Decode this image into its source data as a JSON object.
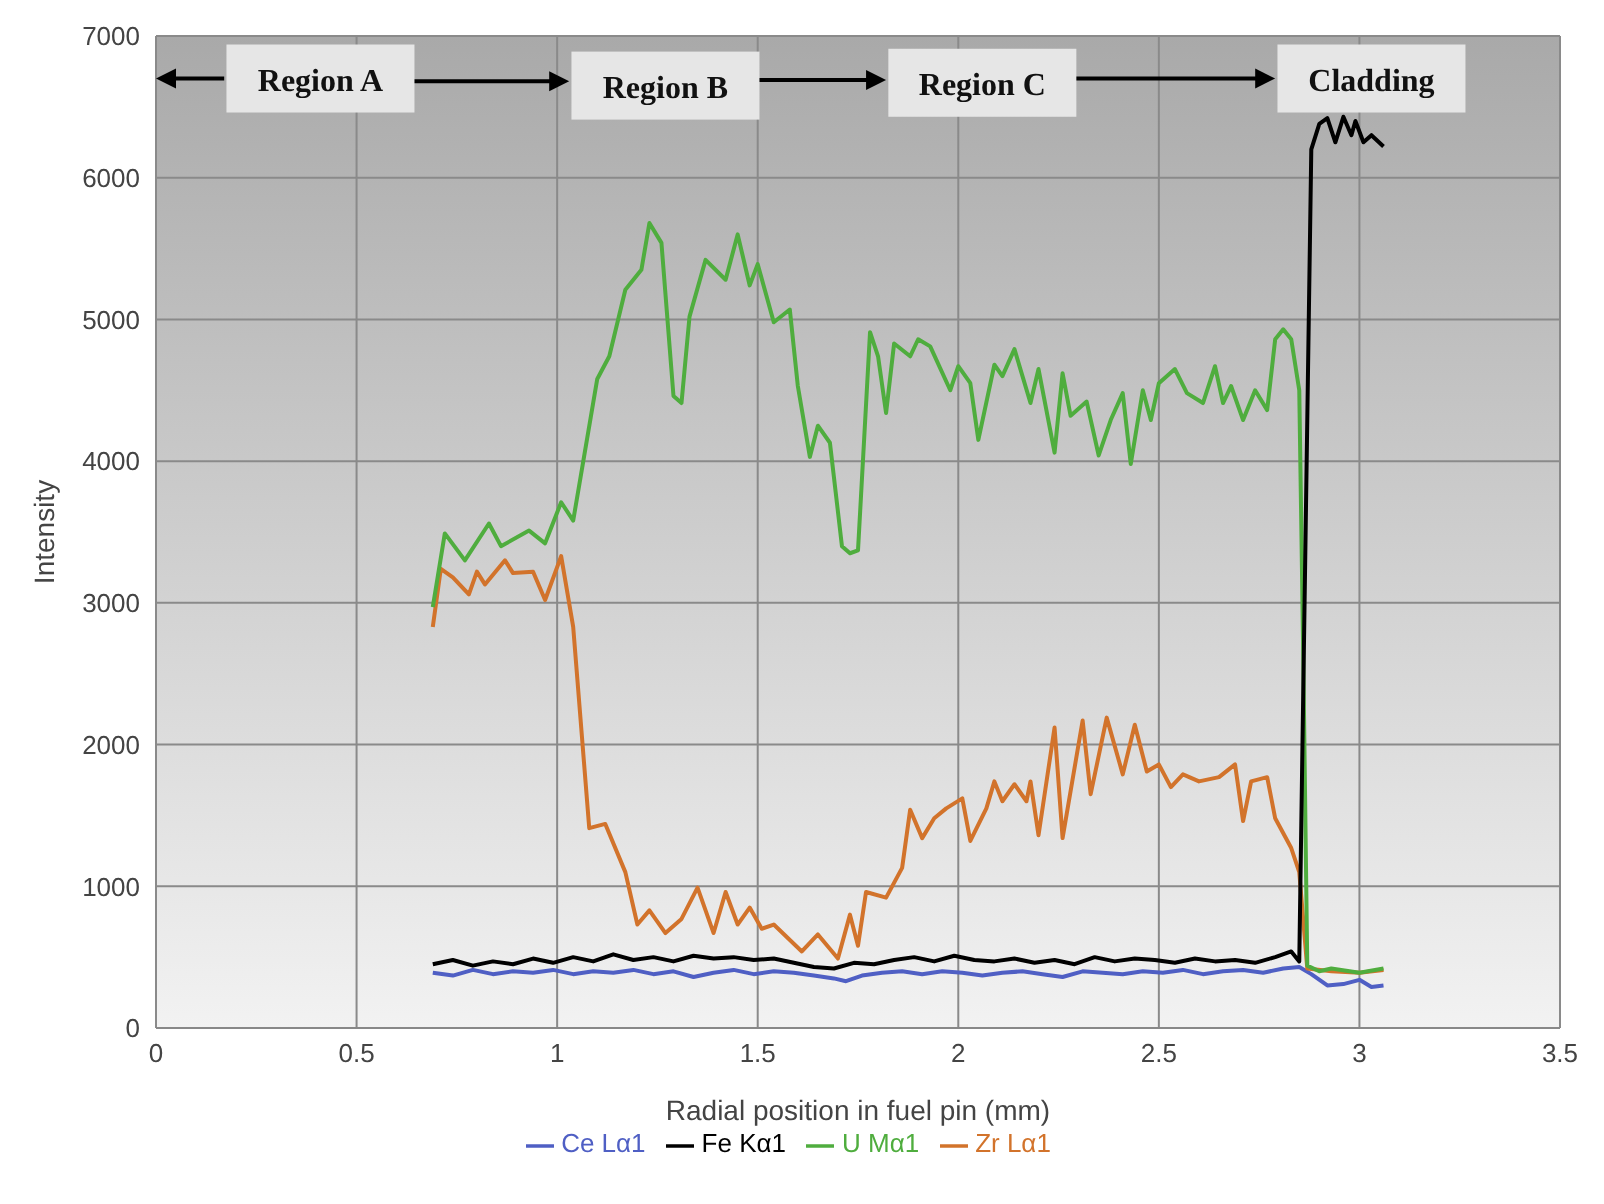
{
  "chart_data": {
    "type": "line",
    "xlabel": "Radial position in fuel pin (mm)",
    "ylabel": "Intensity",
    "xlim": [
      0,
      3.5
    ],
    "xticks": [
      0,
      0.5,
      1,
      1.5,
      2,
      2.5,
      3,
      3.5
    ],
    "ylim": [
      0,
      7000
    ],
    "yticks": [
      0,
      1000,
      2000,
      3000,
      4000,
      5000,
      6000,
      7000
    ],
    "grid": true,
    "legend": "bottom",
    "marker": "none",
    "annotations": [
      "Region A",
      "Region B",
      "Region C",
      "Cladding"
    ],
    "series": [
      {
        "name": "Ce Lα1",
        "color": "#4f5fc4",
        "x": [
          0.69,
          0.74,
          0.79,
          0.84,
          0.89,
          0.94,
          0.99,
          1.04,
          1.09,
          1.14,
          1.19,
          1.24,
          1.29,
          1.34,
          1.39,
          1.44,
          1.49,
          1.54,
          1.59,
          1.64,
          1.69,
          1.72,
          1.76,
          1.81,
          1.86,
          1.91,
          1.96,
          2.01,
          2.06,
          2.11,
          2.16,
          2.21,
          2.26,
          2.31,
          2.36,
          2.41,
          2.46,
          2.51,
          2.56,
          2.61,
          2.66,
          2.71,
          2.76,
          2.81,
          2.85,
          2.88,
          2.92,
          2.96,
          3.0,
          3.03,
          3.06
        ],
        "values": [
          390,
          370,
          410,
          380,
          400,
          390,
          410,
          380,
          400,
          390,
          410,
          380,
          400,
          360,
          390,
          410,
          380,
          400,
          390,
          370,
          350,
          330,
          370,
          390,
          400,
          380,
          400,
          390,
          370,
          390,
          400,
          380,
          360,
          400,
          390,
          380,
          400,
          390,
          410,
          380,
          400,
          410,
          390,
          420,
          430,
          380,
          300,
          310,
          340,
          290,
          300
        ]
      },
      {
        "name": "Zr Lα1",
        "color": "#d2732b",
        "x": [
          0.69,
          0.71,
          0.74,
          0.78,
          0.8,
          0.82,
          0.87,
          0.89,
          0.94,
          0.97,
          1.01,
          1.04,
          1.08,
          1.12,
          1.17,
          1.2,
          1.23,
          1.27,
          1.31,
          1.35,
          1.39,
          1.42,
          1.45,
          1.48,
          1.51,
          1.54,
          1.61,
          1.65,
          1.7,
          1.73,
          1.75,
          1.77,
          1.82,
          1.86,
          1.88,
          1.91,
          1.94,
          1.97,
          2.01,
          2.03,
          2.07,
          2.09,
          2.11,
          2.14,
          2.17,
          2.18,
          2.2,
          2.24,
          2.26,
          2.31,
          2.33,
          2.37,
          2.41,
          2.44,
          2.47,
          2.5,
          2.53,
          2.56,
          2.6,
          2.65,
          2.69,
          2.71,
          2.73,
          2.77,
          2.79,
          2.83,
          2.85,
          2.87,
          2.93,
          3.0,
          3.06
        ],
        "values": [
          2830,
          3240,
          3180,
          3060,
          3220,
          3130,
          3300,
          3210,
          3220,
          3020,
          3330,
          2830,
          1410,
          1440,
          1100,
          730,
          830,
          670,
          770,
          990,
          670,
          960,
          730,
          850,
          700,
          730,
          540,
          660,
          490,
          800,
          580,
          960,
          920,
          1130,
          1540,
          1340,
          1480,
          1550,
          1620,
          1320,
          1550,
          1740,
          1600,
          1720,
          1600,
          1740,
          1360,
          2120,
          1340,
          2170,
          1650,
          2190,
          1790,
          2140,
          1810,
          1860,
          1700,
          1790,
          1740,
          1770,
          1860,
          1460,
          1740,
          1770,
          1480,
          1270,
          1100,
          420,
          400,
          390,
          410
        ]
      },
      {
        "name": "U Mα1",
        "color": "#4fad3e",
        "x": [
          0.69,
          0.72,
          0.77,
          0.83,
          0.86,
          0.93,
          0.97,
          1.01,
          1.04,
          1.1,
          1.13,
          1.17,
          1.21,
          1.23,
          1.26,
          1.29,
          1.31,
          1.33,
          1.37,
          1.42,
          1.45,
          1.48,
          1.5,
          1.54,
          1.58,
          1.6,
          1.63,
          1.65,
          1.68,
          1.71,
          1.73,
          1.75,
          1.78,
          1.8,
          1.82,
          1.84,
          1.88,
          1.9,
          1.93,
          1.98,
          2.0,
          2.03,
          2.05,
          2.09,
          2.11,
          2.14,
          2.18,
          2.2,
          2.24,
          2.26,
          2.28,
          2.32,
          2.35,
          2.38,
          2.41,
          2.43,
          2.46,
          2.48,
          2.5,
          2.54,
          2.57,
          2.61,
          2.64,
          2.66,
          2.68,
          2.71,
          2.74,
          2.77,
          2.79,
          2.81,
          2.83,
          2.85,
          2.86,
          2.87,
          2.9,
          2.93,
          3.0,
          3.06
        ],
        "values": [
          2970,
          3490,
          3300,
          3560,
          3400,
          3510,
          3420,
          3710,
          3580,
          4580,
          4740,
          5210,
          5350,
          5680,
          5540,
          4460,
          4410,
          5020,
          5420,
          5280,
          5600,
          5240,
          5390,
          4980,
          5070,
          4530,
          4030,
          4250,
          4130,
          3400,
          3350,
          3370,
          4910,
          4740,
          4340,
          4830,
          4740,
          4860,
          4810,
          4500,
          4670,
          4550,
          4150,
          4680,
          4600,
          4790,
          4410,
          4650,
          4060,
          4620,
          4320,
          4420,
          4040,
          4290,
          4480,
          3980,
          4500,
          4290,
          4550,
          4650,
          4480,
          4410,
          4670,
          4410,
          4530,
          4290,
          4500,
          4360,
          4860,
          4930,
          4860,
          4500,
          2620,
          440,
          400,
          420,
          390,
          420
        ]
      },
      {
        "name": "Fe Kα1",
        "color": "#000000",
        "x": [
          0.69,
          0.74,
          0.79,
          0.84,
          0.89,
          0.94,
          0.99,
          1.04,
          1.09,
          1.14,
          1.19,
          1.24,
          1.29,
          1.34,
          1.39,
          1.44,
          1.49,
          1.54,
          1.59,
          1.64,
          1.69,
          1.74,
          1.79,
          1.84,
          1.89,
          1.94,
          1.99,
          2.04,
          2.09,
          2.14,
          2.19,
          2.24,
          2.29,
          2.34,
          2.39,
          2.44,
          2.49,
          2.54,
          2.59,
          2.64,
          2.69,
          2.74,
          2.79,
          2.83,
          2.85,
          2.88,
          2.9,
          2.92,
          2.94,
          2.96,
          2.98,
          2.99,
          3.01,
          3.03,
          3.06
        ],
        "values": [
          450,
          480,
          440,
          470,
          450,
          490,
          460,
          500,
          470,
          520,
          480,
          500,
          470,
          510,
          490,
          500,
          480,
          490,
          460,
          430,
          420,
          460,
          450,
          480,
          500,
          470,
          510,
          480,
          470,
          490,
          460,
          480,
          450,
          500,
          470,
          490,
          480,
          460,
          490,
          470,
          480,
          460,
          500,
          540,
          470,
          6200,
          6380,
          6420,
          6250,
          6430,
          6300,
          6400,
          6250,
          6300,
          6220
        ]
      }
    ]
  }
}
